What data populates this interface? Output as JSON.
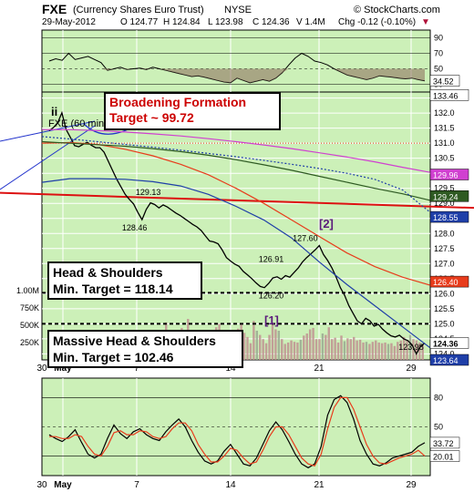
{
  "header": {
    "symbol": "FXE",
    "name": "(Currency Shares Euro Trust)",
    "exchange": "NYSE",
    "credit": "© StockCharts.com",
    "date": "29-May-2012",
    "open": "O 124.77",
    "high": "H 124.84",
    "low": "L 123.98",
    "close": "C 124.36",
    "volume": "V 1.4M",
    "change": "Chg -0.12 (-0.10%)",
    "change_arrow": "▼"
  },
  "colors": {
    "plot_bg": "#ccf0b8",
    "price_line": "#000000",
    "ma_blue": "#1f3fa8",
    "ma_red": "#e83c1c",
    "ma_green": "#2e5a22",
    "ma_magenta": "#d040d0",
    "ma_dotted": "#1f3fa8",
    "trendline": "#dd1111",
    "volume_up": "#c09090",
    "volume_flat": "#9aa890",
    "stoch_fast": "#000000",
    "stoch_slow": "#e83c1c",
    "callout_red": "#cc0000"
  },
  "labels": {
    "wave_ii": "ii",
    "inset_title": "FXE (60 min",
    "wave_1": "[1]",
    "wave_2": "[2]"
  },
  "annotations": {
    "broadening_title": "Broadening Formation",
    "broadening_target": "Target ~ 99.72",
    "hs_title": "Head & Shoulders",
    "hs_target": "Min. Target = 118.14",
    "mhs_title": "Massive Head & Shoulders",
    "mhs_target": "Min. Target = 102.46"
  },
  "chart_data": [
    {
      "type": "line",
      "title": "FXE (Currency Shares Euro Trust) NYSE",
      "y_ticks": [
        "132.5",
        "132.0",
        "131.5",
        "131.0",
        "130.5",
        "130.0",
        "129.5",
        "129.0",
        "128.5",
        "128.0",
        "127.5",
        "127.0",
        "126.5",
        "126.0",
        "125.5",
        "125.0",
        "124.5",
        "124.0"
      ],
      "ylim": [
        123.8,
        132.7
      ],
      "x_ticks": [
        "30",
        "May",
        "7",
        "14",
        "21",
        "29"
      ],
      "price_labels": [
        {
          "text": "129.13",
          "x": 14.5,
          "y": 129.13
        },
        {
          "text": "128.46",
          "x": 12.5,
          "y": 128.46
        },
        {
          "text": "127.60",
          "x": 37.5,
          "y": 127.6
        },
        {
          "text": "126.91",
          "x": 32.5,
          "y": 126.91
        },
        {
          "text": "126.20",
          "x": 32.5,
          "y": 126.2
        },
        {
          "text": "123.98",
          "x": 53.0,
          "y": 123.98
        }
      ],
      "right_axis_badges": [
        {
          "text": "133.46",
          "color": "#ffffff",
          "y": 132.6
        },
        {
          "text": "129.96",
          "color": "#d040d0",
          "y": 129.96
        },
        {
          "text": "129.24",
          "color": "#2e5a22",
          "y": 129.24
        },
        {
          "text": "128.55",
          "color": "#1f3fa8",
          "y": 128.55
        },
        {
          "text": "126.40",
          "color": "#e83c1c",
          "y": 126.4
        },
        {
          "text": "124.36",
          "color": "#ffffff",
          "y": 124.36
        },
        {
          "text": "123.64",
          "color": "#1f3fa8",
          "y": 123.8
        }
      ],
      "series": [
        {
          "values": [
            131.42,
            131.52,
            131.68,
            132.01,
            131.46,
            131.2,
            130.92,
            130.88,
            130.96,
            131.03,
            130.93,
            130.85,
            130.85,
            130.7,
            130.4,
            130.1,
            129.8,
            129.55,
            129.3,
            129.13,
            128.98,
            128.7,
            128.46,
            128.8,
            129.02,
            128.96,
            128.85,
            128.95,
            128.88,
            128.78,
            128.68,
            128.6,
            128.5,
            128.4,
            128.3,
            128.22,
            128.1,
            127.92,
            127.75,
            127.72,
            127.66,
            127.45,
            127.2,
            127.08,
            126.98,
            126.91,
            126.74,
            126.62,
            126.5,
            126.36,
            126.24,
            126.2,
            126.34,
            126.52,
            126.56,
            126.48,
            126.6,
            126.55,
            126.7,
            126.85,
            127.05,
            127.2,
            127.32,
            127.45,
            127.6,
            127.3,
            127.1,
            126.85,
            126.55,
            126.2,
            125.95,
            125.6,
            125.35,
            125.1,
            125.0,
            125.18,
            125.1,
            124.92,
            124.98,
            124.82,
            124.7,
            124.6,
            124.56,
            124.62,
            124.5,
            124.44,
            124.3,
            124.0,
            124.25,
            124.36
          ]
        },
        {
          "name": "MA blue",
          "values": [
            129.7,
            129.82,
            129.82,
            129.8,
            129.72,
            129.58,
            129.3,
            128.9,
            128.45,
            127.85,
            127.05,
            126.3,
            125.6,
            124.9,
            124.2
          ]
        },
        {
          "name": "MA red",
          "values": [
            131.0,
            131.02,
            130.96,
            130.8,
            130.58,
            130.3,
            129.95,
            129.5,
            129.0,
            128.45,
            127.9,
            127.35,
            126.9,
            126.55,
            126.28
          ]
        },
        {
          "name": "MA green",
          "values": [
            131.05,
            131.0,
            130.95,
            130.9,
            130.82,
            130.72,
            130.6,
            130.45,
            130.28,
            130.1,
            129.9,
            129.7,
            129.5,
            129.32,
            129.1
          ]
        },
        {
          "name": "MA magenta",
          "values": [
            131.45,
            131.45,
            131.42,
            131.37,
            131.31,
            131.24,
            131.15,
            131.05,
            130.94,
            130.82,
            130.68,
            130.54,
            130.38,
            130.2,
            130.03
          ]
        },
        {
          "name": "MA dotted",
          "values": [
            131.22,
            131.14,
            131.05,
            130.96,
            130.87,
            130.77,
            130.66,
            130.55,
            130.43,
            130.3,
            130.16,
            130.0,
            129.8,
            129.45,
            128.7
          ]
        }
      ],
      "trendline": [
        {
          "x": 0,
          "y": 129.35
        },
        {
          "x": 55,
          "y": 128.85
        }
      ],
      "neckline_hs": 126.03,
      "neckline_massive": 125.0,
      "ref_line_red_dotted": 131.0
    },
    {
      "type": "line",
      "title": "RSI panel",
      "y_ticks": [
        "90",
        "70",
        "50",
        "30"
      ],
      "ylim": [
        20,
        100
      ],
      "badge": "34.52",
      "values": [
        60,
        63,
        61,
        70,
        62,
        64,
        66,
        62,
        58,
        48,
        50,
        52,
        49,
        50,
        51,
        49,
        52,
        50,
        48,
        46,
        44,
        42,
        40,
        41,
        39,
        37,
        35,
        33,
        32,
        38,
        35,
        32,
        34,
        36,
        34,
        38,
        45,
        55,
        64,
        70,
        66,
        60,
        58,
        55,
        50,
        46,
        42,
        40,
        38,
        36,
        38,
        41,
        40,
        39,
        38,
        37,
        38,
        36,
        34.52
      ]
    },
    {
      "type": "bar",
      "title": "Volume",
      "y_ticks": [
        "1.00M",
        "750K",
        "500K",
        "250K"
      ],
      "ylim": [
        0,
        1050000
      ],
      "values": [
        330000,
        280000,
        240000,
        300000,
        200000,
        260000,
        310000,
        280000,
        250000,
        180000,
        190000,
        220000,
        270000,
        320000,
        240000,
        260000,
        230000,
        180000,
        240000,
        210000,
        280000,
        260000,
        240000,
        220000,
        200000,
        250000,
        230000,
        190000,
        270000,
        210000,
        280000,
        330000,
        260000,
        300000,
        240000,
        280000,
        400000,
        540000,
        300000,
        260000,
        380000,
        240000,
        460000,
        250000,
        590000,
        380000,
        260000,
        300000,
        350000,
        230000,
        280000,
        330000,
        300000,
        470000,
        520000,
        250000,
        330000,
        260000,
        210000,
        300000,
        450000,
        520000,
        390000,
        330000,
        240000,
        560000,
        420000,
        360000,
        300000,
        240000,
        360000,
        510000,
        440000,
        420000,
        300000,
        230000,
        250000,
        280000,
        260000,
        250000,
        290000,
        350000,
        380000,
        440000,
        460000,
        300000,
        300000,
        380000,
        360000,
        470000,
        300000,
        320000,
        250000,
        350000,
        270000,
        310000,
        300000,
        330000,
        280000,
        290000,
        250000,
        260000,
        230000,
        260000,
        280000,
        250000,
        240000,
        250000,
        230000,
        240000,
        200000,
        260000,
        280000,
        330000,
        280000,
        360000,
        300000,
        280000,
        250000,
        220000
      ]
    },
    {
      "type": "line",
      "title": "Stochastic",
      "y_ticks": [
        "80",
        "50",
        "20"
      ],
      "ylim": [
        0,
        100
      ],
      "badges": [
        "33.72",
        "20.01"
      ],
      "series": [
        {
          "name": "fast",
          "values": [
            42,
            38,
            35,
            40,
            47,
            34,
            22,
            18,
            22,
            38,
            52,
            43,
            38,
            45,
            48,
            42,
            38,
            36,
            45,
            52,
            58,
            50,
            36,
            24,
            15,
            12,
            15,
            25,
            32,
            22,
            12,
            10,
            18,
            32,
            46,
            55,
            47,
            35,
            22,
            12,
            8,
            12,
            30,
            62,
            78,
            82,
            75,
            58,
            36,
            22,
            12,
            10,
            13,
            18,
            20,
            22,
            24,
            30,
            33.72
          ]
        },
        {
          "name": "slow",
          "values": [
            40,
            40,
            38,
            38,
            42,
            40,
            30,
            22,
            20,
            30,
            44,
            46,
            42,
            42,
            46,
            45,
            40,
            38,
            40,
            48,
            54,
            54,
            46,
            32,
            22,
            14,
            14,
            20,
            28,
            26,
            18,
            12,
            14,
            26,
            40,
            50,
            50,
            42,
            30,
            18,
            12,
            10,
            22,
            48,
            70,
            80,
            80,
            68,
            50,
            32,
            20,
            13,
            12,
            15,
            18,
            20,
            22,
            26,
            20.01
          ]
        }
      ]
    }
  ]
}
